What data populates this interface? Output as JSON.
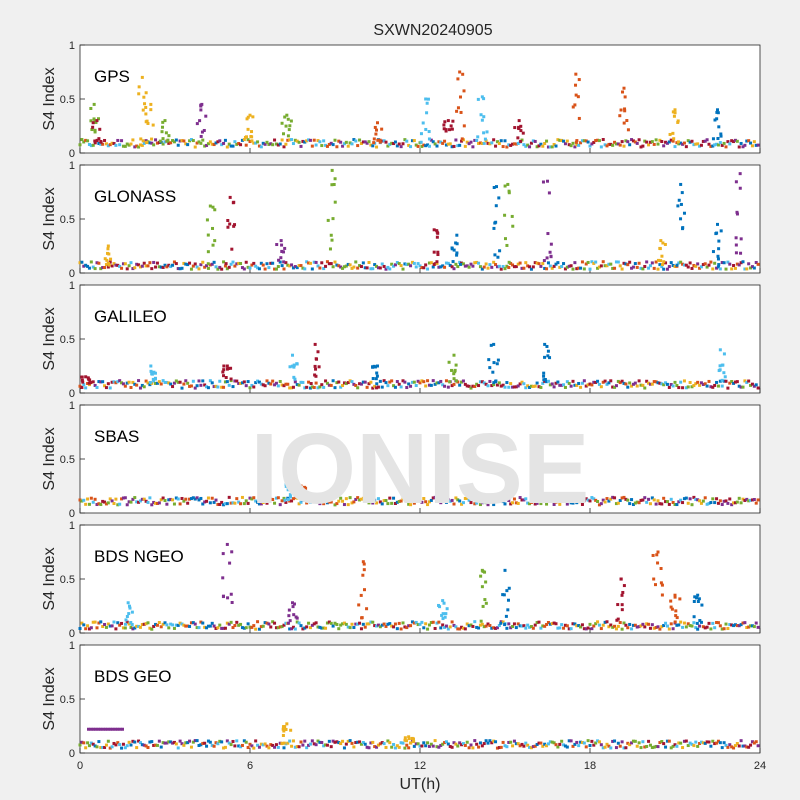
{
  "figure": {
    "title": "SXWN20240905",
    "xlabel": "UT(h)",
    "watermark": "IONISE"
  },
  "chart_data": {
    "type": "scatter",
    "title": "SXWN20240905",
    "xlabel": "UT(h)",
    "ylabel": "S4 Index",
    "xlim": [
      0,
      24
    ],
    "ylim": [
      0,
      1
    ],
    "xticks": [
      0,
      6,
      12,
      18,
      24
    ],
    "yticks": [
      0,
      0.5,
      1
    ],
    "x_tick_labels": [
      "0",
      "6",
      "12",
      "18",
      "24"
    ],
    "y_tick_labels": [
      "0",
      "0.5",
      "1"
    ],
    "grid": false,
    "series_colors": [
      "#0072BD",
      "#D95319",
      "#EDB120",
      "#7E2F8E",
      "#77AC30",
      "#4DBEEE",
      "#A2142F"
    ],
    "panels": [
      {
        "label": "GPS",
        "ylabel": "S4 Index",
        "baseline": 0.09,
        "spikes": [
          [
            0.5,
            0.45,
            "#77AC30"
          ],
          [
            0.6,
            0.3,
            "#A2142F"
          ],
          [
            2.2,
            0.7,
            "#EDB120"
          ],
          [
            2.5,
            0.45,
            "#EDB120"
          ],
          [
            3.0,
            0.3,
            "#77AC30"
          ],
          [
            4.3,
            0.45,
            "#7E2F8E"
          ],
          [
            6.0,
            0.35,
            "#EDB120"
          ],
          [
            7.3,
            0.35,
            "#77AC30"
          ],
          [
            10.5,
            0.28,
            "#D95319"
          ],
          [
            12.2,
            0.5,
            "#4DBEEE"
          ],
          [
            13.0,
            0.3,
            "#A2142F"
          ],
          [
            13.4,
            0.75,
            "#D95319"
          ],
          [
            14.2,
            0.52,
            "#4DBEEE"
          ],
          [
            15.5,
            0.3,
            "#A2142F"
          ],
          [
            17.5,
            0.73,
            "#D95319"
          ],
          [
            19.2,
            0.6,
            "#D95319"
          ],
          [
            21.0,
            0.4,
            "#EDB120"
          ],
          [
            22.5,
            0.4,
            "#0072BD"
          ]
        ]
      },
      {
        "label": "GLONASS",
        "ylabel": "S4 Index",
        "baseline": 0.07,
        "spikes": [
          [
            1.0,
            0.25,
            "#EDB120"
          ],
          [
            4.6,
            0.62,
            "#77AC30"
          ],
          [
            5.3,
            0.7,
            "#A2142F"
          ],
          [
            7.1,
            0.3,
            "#7E2F8E"
          ],
          [
            8.9,
            0.95,
            "#77AC30"
          ],
          [
            12.5,
            0.4,
            "#A2142F"
          ],
          [
            13.3,
            0.35,
            "#0072BD"
          ],
          [
            14.7,
            0.8,
            "#0072BD"
          ],
          [
            15.1,
            0.82,
            "#77AC30"
          ],
          [
            16.5,
            0.85,
            "#7E2F8E"
          ],
          [
            20.5,
            0.3,
            "#EDB120"
          ],
          [
            21.2,
            0.82,
            "#0072BD"
          ],
          [
            22.5,
            0.45,
            "#0072BD"
          ],
          [
            23.3,
            0.92,
            "#7E2F8E"
          ]
        ]
      },
      {
        "label": "GALILEO",
        "ylabel": "S4 Index",
        "baseline": 0.08,
        "spikes": [
          [
            0.2,
            0.15,
            "#A2142F"
          ],
          [
            2.5,
            0.25,
            "#4DBEEE"
          ],
          [
            5.2,
            0.25,
            "#A2142F"
          ],
          [
            7.5,
            0.35,
            "#4DBEEE"
          ],
          [
            8.3,
            0.45,
            "#A2142F"
          ],
          [
            10.5,
            0.25,
            "#0072BD"
          ],
          [
            13.2,
            0.35,
            "#77AC30"
          ],
          [
            14.6,
            0.45,
            "#0072BD"
          ],
          [
            16.4,
            0.45,
            "#0072BD"
          ],
          [
            22.6,
            0.4,
            "#4DBEEE"
          ]
        ]
      },
      {
        "label": "SBAS",
        "ylabel": "S4 Index",
        "baseline": 0.11,
        "spikes": [
          [
            7.3,
            0.35,
            "#4DBEEE"
          ],
          [
            7.8,
            0.25,
            "#D95319"
          ],
          [
            11.6,
            0.2,
            "#4DBEEE"
          ]
        ]
      },
      {
        "label": "BDS NGEO",
        "ylabel": "S4 Index",
        "baseline": 0.07,
        "spikes": [
          [
            1.7,
            0.28,
            "#4DBEEE"
          ],
          [
            5.2,
            0.82,
            "#7E2F8E"
          ],
          [
            7.5,
            0.28,
            "#7E2F8E"
          ],
          [
            10.0,
            0.66,
            "#D95319"
          ],
          [
            12.8,
            0.3,
            "#4DBEEE"
          ],
          [
            14.2,
            0.58,
            "#77AC30"
          ],
          [
            15.0,
            0.58,
            "#0072BD"
          ],
          [
            19.1,
            0.5,
            "#A2142F"
          ],
          [
            20.4,
            0.75,
            "#D95319"
          ],
          [
            21.0,
            0.35,
            "#D95319"
          ],
          [
            21.8,
            0.35,
            "#0072BD"
          ]
        ]
      },
      {
        "label": "BDS GEO",
        "ylabel": "S4 Index",
        "baseline": 0.08,
        "spikes": [
          [
            7.3,
            0.27,
            "#EDB120"
          ],
          [
            11.6,
            0.15,
            "#EDB120"
          ]
        ],
        "segment": {
          "x_start": 0.3,
          "x_end": 1.5,
          "y": 0.22,
          "color": "#7E2F8E"
        }
      }
    ]
  }
}
